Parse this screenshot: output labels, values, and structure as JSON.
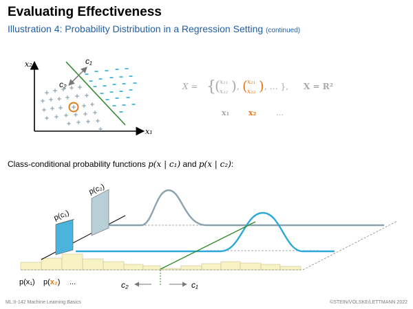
{
  "slide": {
    "title": "Evaluating Effectiveness",
    "subtitle_prefix": "Illustration 4:",
    "subtitle_main": "Probability Distribution in a Regression Setting",
    "subtitle_suffix": "(continued)",
    "section_label_text": "Class-conditional probability functions",
    "section_label_f1": "p(x | c₁)",
    "section_label_and": "and",
    "section_label_f2": "p(x | c₂)",
    "section_label_colon": ":",
    "footer_left": "ML:II-142    Machine Learning Basics",
    "footer_right": "©STEIN/VÖLSKE/LETTMANN 2022"
  },
  "scatter": {
    "axis_y": "x₂",
    "axis_x": "x₁",
    "label_c1": "c₁",
    "label_c2": "c₂",
    "plus_symbol": "+",
    "minus_symbol": "-"
  },
  "formula": {
    "X_eq": "X =",
    "x1": "x₁",
    "x11": "x₁₁",
    "x12": "x₁₂",
    "x21": "x₂₁",
    "x22": "x₂₂",
    "dots": ", … },",
    "space_def": "X = R²",
    "vec1": "x₁",
    "vec2": "x₂",
    "vec_dots": "…"
  },
  "diagram": {
    "label_pc1": "p(c₁)",
    "label_pc2": "p(c₂)",
    "label_px1": "p(x₁)",
    "label_px2_prefix": "p(",
    "label_px2_var": "x₂",
    "label_px2_suffix": ")",
    "label_dots": "...",
    "label_c2": "c₂",
    "label_c1": "c₁"
  },
  "colors": {
    "title_blue": "#1f5fa8",
    "c1_curve": "#2aa9d9",
    "c2_curve": "#8aa1ae",
    "bar_c1": "#4ab4dc",
    "bar_c2": "#b9cfd8",
    "histogram": "#f8f3c4",
    "boundary": "#2e8b2e",
    "highlight": "#e07b1c",
    "formula_gray": "#a8a8a8"
  }
}
